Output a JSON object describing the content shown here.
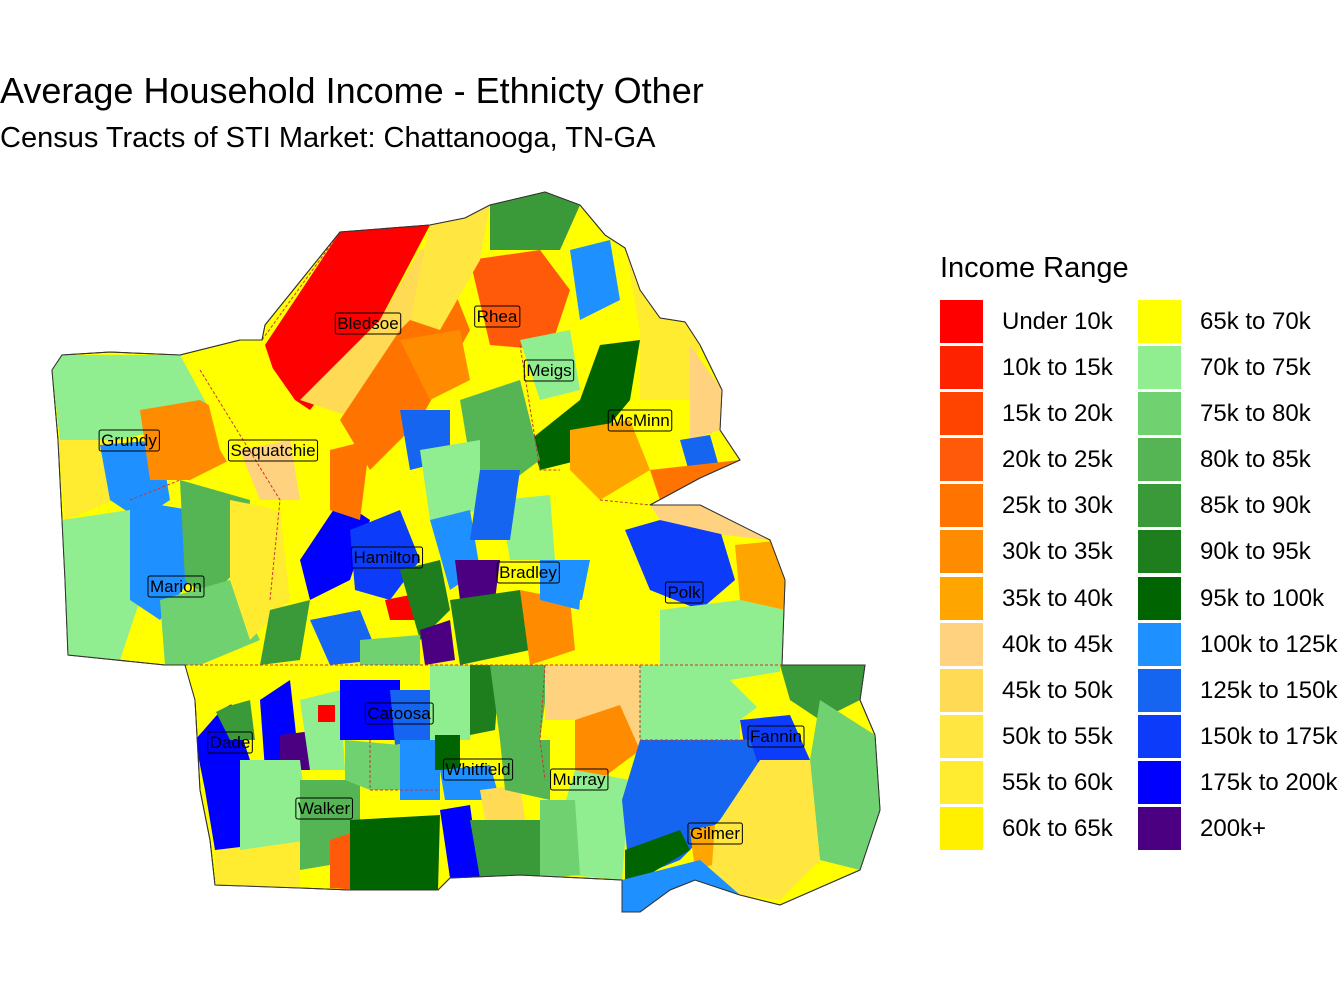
{
  "title": "Average Household Income - Ethnicty Other",
  "subtitle": "Census Tracts of STI Market: Chattanooga, TN-GA",
  "legend": {
    "title": "Income Range",
    "items": [
      {
        "label": "Under 10k",
        "color": "#FF0000"
      },
      {
        "label": "10k to 15k",
        "color": "#FF2200"
      },
      {
        "label": "15k to 20k",
        "color": "#FF4400"
      },
      {
        "label": "20k to 25k",
        "color": "#FF5A0A"
      },
      {
        "label": "25k to 30k",
        "color": "#FF7300"
      },
      {
        "label": "30k to 35k",
        "color": "#FF8C00"
      },
      {
        "label": "35k to 40k",
        "color": "#FFA500"
      },
      {
        "label": "40k to 45k",
        "color": "#FFD27F"
      },
      {
        "label": "45k to 50k",
        "color": "#FFDA55"
      },
      {
        "label": "50k to 55k",
        "color": "#FFE640"
      },
      {
        "label": "55k to 60k",
        "color": "#FFEC30"
      },
      {
        "label": "60k to 65k",
        "color": "#FFF000"
      },
      {
        "label": "65k to 70k",
        "color": "#FFFF00"
      },
      {
        "label": "70k to 75k",
        "color": "#90EE90"
      },
      {
        "label": "75k to 80k",
        "color": "#6FD16F"
      },
      {
        "label": "80k to 85k",
        "color": "#55B555"
      },
      {
        "label": "85k to 90k",
        "color": "#3A9A3A"
      },
      {
        "label": "90k to 95k",
        "color": "#1E7E1E"
      },
      {
        "label": "95k to 100k",
        "color": "#006400"
      },
      {
        "label": "100k to 125k",
        "color": "#1E90FF"
      },
      {
        "label": "125k to 150k",
        "color": "#1665F0"
      },
      {
        "label": "150k to 175k",
        "color": "#0D3BFA"
      },
      {
        "label": "175k to 200k",
        "color": "#0000FF"
      },
      {
        "label": "200k+",
        "color": "#4B0082"
      }
    ]
  },
  "counties": [
    {
      "name": "Bledsoe",
      "income": "Under 10k"
    },
    {
      "name": "Rhea",
      "income": "65k to 70k"
    },
    {
      "name": "Meigs",
      "income": "70k to 75k"
    },
    {
      "name": "McMinn",
      "income": "90k to 95k"
    },
    {
      "name": "Grundy",
      "income": "65k to 70k"
    },
    {
      "name": "Sequatchie",
      "income": "65k to 70k"
    },
    {
      "name": "Hamilton",
      "income": "175k to 200k"
    },
    {
      "name": "Bradley",
      "income": "200k+"
    },
    {
      "name": "Marion",
      "income": "100k to 125k"
    },
    {
      "name": "Polk",
      "income": "150k to 175k"
    },
    {
      "name": "Catoosa",
      "income": "175k to 200k"
    },
    {
      "name": "Dade",
      "income": "150k to 175k"
    },
    {
      "name": "Fannin",
      "income": "65k to 70k"
    },
    {
      "name": "Whitfield",
      "income": "100k to 125k"
    },
    {
      "name": "Murray",
      "income": "40k to 45k"
    },
    {
      "name": "Walker",
      "income": "65k to 70k"
    },
    {
      "name": "Gilmer",
      "income": "125k to 150k"
    }
  ]
}
